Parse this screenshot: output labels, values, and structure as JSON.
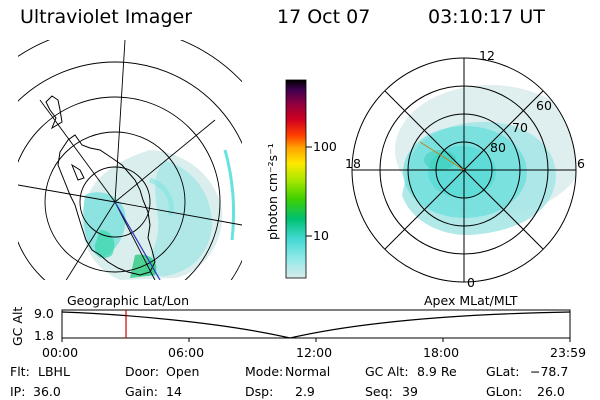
{
  "header": {
    "instrument": "Ultraviolet Imager",
    "date": "17 Oct 07",
    "time": "03:10:17 UT"
  },
  "colorbar": {
    "unit_label": "photon cm⁻²s⁻¹",
    "ticks": [
      "100",
      "10"
    ],
    "colors": [
      "#000000",
      "#3a0a4a",
      "#800040",
      "#b00020",
      "#e00010",
      "#ff3000",
      "#ff7f00",
      "#ffb000",
      "#ffe000",
      "#e0f000",
      "#a0e000",
      "#50d000",
      "#00c060",
      "#20d0b0",
      "#40e0e0",
      "#90e8e8",
      "#d0e8e8"
    ]
  },
  "left_map": {
    "caption": "Geographic Lat/Lon"
  },
  "right_map": {
    "caption": "Apex MLat/MLT",
    "mlt_labels": {
      "top": "12",
      "left": "18",
      "right": "6",
      "bottom": "0"
    },
    "lat_labels": [
      "60",
      "70",
      "80"
    ]
  },
  "altitude_plot": {
    "ylabel": "GC Alt",
    "ymax": "9.0",
    "ymin": "1.8",
    "xticks": [
      "00:00",
      "06:00",
      "12:00",
      "18:00",
      "23:59"
    ]
  },
  "info": {
    "filter": {
      "label": "Flt:",
      "value": "LBHL"
    },
    "door": {
      "label": "Door:",
      "value": "Open"
    },
    "mode": {
      "label": "Mode:",
      "value": "Normal"
    },
    "gc_alt": {
      "label": "GC Alt:",
      "value": "8.9 Re"
    },
    "glat": {
      "label": "GLat:",
      "value": "−78.7"
    },
    "ip": {
      "label": "IP:",
      "value": "36.0"
    },
    "gain": {
      "label": "Gain:",
      "value": "14"
    },
    "dsp": {
      "label": "Dsp:",
      "value": "2.9"
    },
    "seq": {
      "label": "Seq:",
      "value": "39"
    },
    "glon": {
      "label": "GLon:",
      "value": "26.0"
    }
  },
  "colors": {
    "aurora_light": "#cfeaea",
    "aurora_mid": "#8fe6e6",
    "aurora_bright": "#40dcd8",
    "aurora_green": "#40c080",
    "marker_red": "#cc0000"
  }
}
